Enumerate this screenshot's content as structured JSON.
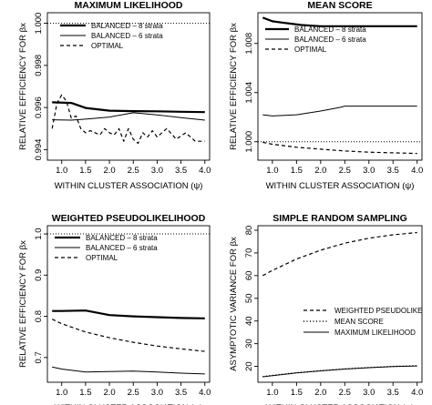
{
  "chart_data": [
    {
      "type": "line",
      "title": "MAXIMUM LIKELIHOOD",
      "xlabel": "WITHIN CLUSTER ASSOCIATION (ψ)",
      "ylabel": "RELATIVE EFFICIENCY FOR βx",
      "xlim": [
        0.7,
        4.1
      ],
      "ylim": [
        0.9935,
        1.0005
      ],
      "xticks": [
        1.0,
        1.5,
        2.0,
        2.5,
        3.0,
        3.5,
        4.0
      ],
      "xtick_labels": [
        "1.0",
        "1.5",
        "2.0",
        "2.5",
        "3.0",
        "3.5",
        "4.0"
      ],
      "yticks": [
        0.994,
        0.996,
        0.998,
        1.0
      ],
      "ytick_labels": [
        "0.994",
        "0.996",
        "0.998",
        "1.000"
      ],
      "reference_line": 1.0,
      "legend_position": "top-left",
      "series": [
        {
          "name": "BALANCED – 8 strata",
          "style": "thick",
          "x": [
            0.8,
            1.2,
            1.5,
            2.0,
            2.5,
            3.0,
            3.5,
            4.0
          ],
          "y": [
            0.99625,
            0.99622,
            0.99598,
            0.99585,
            0.99583,
            0.99582,
            0.9958,
            0.99578
          ]
        },
        {
          "name": "BALANCED – 6 strata",
          "style": "thin",
          "x": [
            0.8,
            1.2,
            1.5,
            2.0,
            2.5,
            3.0,
            3.5,
            4.0
          ],
          "y": [
            0.99542,
            0.9954,
            0.99545,
            0.99555,
            0.99575,
            0.99565,
            0.99552,
            0.9954
          ]
        },
        {
          "name": "OPTIMAL",
          "style": "dashed",
          "x": [
            0.8,
            0.9,
            1.0,
            1.1,
            1.2,
            1.3,
            1.4,
            1.5,
            1.6,
            1.7,
            1.8,
            1.9,
            2.0,
            2.1,
            2.2,
            2.3,
            2.4,
            2.5,
            2.6,
            2.7,
            2.8,
            2.9,
            3.0,
            3.2,
            3.4,
            3.6,
            3.8,
            4.0
          ],
          "y": [
            0.995,
            0.9962,
            0.9966,
            0.9963,
            0.9955,
            0.9956,
            0.995,
            0.9948,
            0.9949,
            0.9948,
            0.9947,
            0.995,
            0.9948,
            0.9947,
            0.995,
            0.9944,
            0.995,
            0.9945,
            0.9943,
            0.9948,
            0.9946,
            0.9949,
            0.9946,
            0.995,
            0.9945,
            0.9948,
            0.9944,
            0.9944
          ]
        }
      ]
    },
    {
      "type": "line",
      "title": "MEAN SCORE",
      "xlabel": "WITHIN CLUSTER ASSOCIATION (ψ)",
      "ylabel": "RELATIVE EFFICIENCY FOR βx",
      "xlim": [
        0.7,
        4.1
      ],
      "ylim": [
        0.9985,
        1.0105
      ],
      "xticks": [
        1.0,
        1.5,
        2.0,
        2.5,
        3.0,
        3.5,
        4.0
      ],
      "xtick_labels": [
        "1.0",
        "1.5",
        "2.0",
        "2.5",
        "3.0",
        "3.5",
        "4.0"
      ],
      "yticks": [
        1.0,
        1.004,
        1.008
      ],
      "ytick_labels": [
        "1.000",
        "1.004",
        "1.008"
      ],
      "reference_line": 1.0,
      "legend_position": "top-left",
      "series": [
        {
          "name": "BALANCED – 8 strata",
          "style": "thick",
          "x": [
            0.8,
            1.0,
            1.2,
            1.4,
            1.6,
            2.0,
            2.5,
            3.0,
            3.5,
            4.0
          ],
          "y": [
            1.0101,
            1.0098,
            1.0097,
            1.0096,
            1.0095,
            1.0094,
            1.0094,
            1.0094,
            1.0094,
            1.0094
          ]
        },
        {
          "name": "BALANCED – 6 strata",
          "style": "thin",
          "x": [
            0.8,
            1.0,
            1.5,
            2.0,
            2.4,
            2.5,
            3.0,
            3.5,
            4.0
          ],
          "y": [
            1.0022,
            1.0021,
            1.0022,
            1.0025,
            1.0028,
            1.0029,
            1.0029,
            1.0029,
            1.0029
          ]
        },
        {
          "name": "OPTIMAL",
          "style": "dashed",
          "x": [
            0.8,
            1.0,
            1.5,
            2.0,
            2.5,
            3.0,
            3.5,
            4.0
          ],
          "y": [
            0.99995,
            0.9998,
            0.99955,
            0.9994,
            0.99925,
            0.99915,
            0.9991,
            0.99905
          ]
        }
      ]
    },
    {
      "type": "line",
      "title": "WEIGHTED PSEUDOLIKELIHOOD",
      "xlabel": "WITHIN CLUSTER ASSOCIATION (ψ)",
      "ylabel": "RELATIVE EFFICIENCY FOR βx",
      "xlim": [
        0.7,
        4.1
      ],
      "ylim": [
        0.64,
        1.02
      ],
      "xticks": [
        1.0,
        1.5,
        2.0,
        2.5,
        3.0,
        3.5,
        4.0
      ],
      "xtick_labels": [
        "1.0",
        "1.5",
        "2.0",
        "2.5",
        "3.0",
        "3.5",
        "4.0"
      ],
      "yticks": [
        0.7,
        0.8,
        0.9,
        1.0
      ],
      "ytick_labels": [
        "0.7",
        "0.8",
        "0.9",
        "1.0"
      ],
      "reference_line": 1.0,
      "legend_position": "top-left",
      "series": [
        {
          "name": "BALANCED – 8 strata",
          "style": "thick",
          "x": [
            0.8,
            1.0,
            1.5,
            2.0,
            2.5,
            3.0,
            3.5,
            4.0
          ],
          "y": [
            0.813,
            0.813,
            0.814,
            0.803,
            0.8,
            0.798,
            0.796,
            0.795
          ]
        },
        {
          "name": "BALANCED – 6 strata",
          "style": "thin",
          "x": [
            0.8,
            1.0,
            1.5,
            2.0,
            2.5,
            3.0,
            3.5,
            4.0
          ],
          "y": [
            0.677,
            0.672,
            0.665,
            0.666,
            0.667,
            0.665,
            0.662,
            0.66
          ]
        },
        {
          "name": "OPTIMAL",
          "style": "dashed",
          "x": [
            0.8,
            1.0,
            1.5,
            2.0,
            2.5,
            3.0,
            3.5,
            4.0
          ],
          "y": [
            0.793,
            0.782,
            0.762,
            0.748,
            0.737,
            0.728,
            0.721,
            0.715
          ]
        }
      ]
    },
    {
      "type": "line",
      "title": "SIMPLE RANDOM SAMPLING",
      "xlabel": "WITHIN CLUSTER ASSOCIATION (ψ)",
      "ylabel": "ASYMPTOTIC VARIANCE FOR βx",
      "xlim": [
        0.7,
        4.1
      ],
      "ylim": [
        13,
        82
      ],
      "xticks": [
        1.0,
        1.5,
        2.0,
        2.5,
        3.0,
        3.5,
        4.0
      ],
      "xtick_labels": [
        "1.0",
        "1.5",
        "2.0",
        "2.5",
        "3.0",
        "3.5",
        "4.0"
      ],
      "yticks": [
        20,
        30,
        40,
        50,
        60,
        70,
        80
      ],
      "ytick_labels": [
        "20",
        "30",
        "40",
        "50",
        "60",
        "70",
        "80"
      ],
      "legend_position": "right",
      "series": [
        {
          "name": "WEIGHTED PSEUDOLIKE",
          "style": "dashed",
          "x": [
            0.8,
            1.0,
            1.5,
            2.0,
            2.5,
            3.0,
            3.5,
            4.0
          ],
          "y": [
            60.0,
            62.3,
            67.3,
            71.2,
            74.3,
            76.5,
            78.0,
            79.0
          ]
        },
        {
          "name": "MEAN SCORE",
          "style": "dotted",
          "x": [
            0.8,
            1.0,
            1.5,
            2.0,
            2.5,
            3.0,
            3.5,
            4.0
          ],
          "y": [
            15.5,
            16.0,
            17.2,
            18.1,
            18.9,
            19.5,
            20.0,
            20.3
          ]
        },
        {
          "name": "MAXIMUM LIKELIHOOD",
          "style": "thin",
          "x": [
            0.8,
            1.0,
            1.5,
            2.0,
            2.5,
            3.0,
            3.5,
            4.0
          ],
          "y": [
            15.4,
            15.9,
            17.1,
            18.0,
            18.8,
            19.4,
            19.9,
            20.2
          ]
        }
      ]
    }
  ]
}
